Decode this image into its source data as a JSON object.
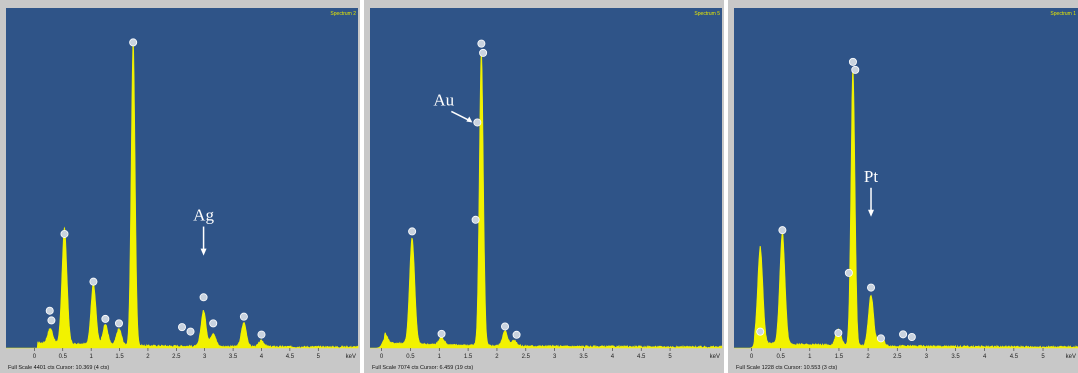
{
  "colors": {
    "plot_background": "#2f5488",
    "spectrum": "#f2f200",
    "annotation": "#ffffff",
    "frame": "#c8c8c8"
  },
  "chart_data": [
    {
      "type": "line",
      "spectrum_label": "Spectrum 2",
      "xlabel": "keV",
      "xticks": [
        "0",
        "0.5",
        "1",
        "1.5",
        "2",
        "2.5",
        "3",
        "3.5",
        "4",
        "4.5",
        "5"
      ],
      "xlim": [
        -0.5,
        5.7
      ],
      "footer_scale": "Full Scale 4401 cts",
      "footer_cursor": "Cursor: 10.369 (4 cts)",
      "ylim": [
        0,
        4401
      ],
      "peaks": [
        {
          "x": 0.28,
          "y": 200
        },
        {
          "x": 0.53,
          "y": 1550
        },
        {
          "x": 1.04,
          "y": 820
        },
        {
          "x": 1.25,
          "y": 280
        },
        {
          "x": 1.49,
          "y": 220
        },
        {
          "x": 1.74,
          "y": 4100
        },
        {
          "x": 2.98,
          "y": 480
        },
        {
          "x": 3.15,
          "y": 180
        },
        {
          "x": 3.69,
          "y": 320
        },
        {
          "x": 4.0,
          "y": 80
        }
      ],
      "markers": [
        {
          "x": 0.27,
          "y": 460
        },
        {
          "x": 0.3,
          "y": 330
        },
        {
          "x": 0.53,
          "y": 1490
        },
        {
          "x": 1.04,
          "y": 850
        },
        {
          "x": 1.25,
          "y": 350
        },
        {
          "x": 1.49,
          "y": 290
        },
        {
          "x": 1.74,
          "y": 4060
        },
        {
          "x": 2.6,
          "y": 240
        },
        {
          "x": 2.75,
          "y": 180
        },
        {
          "x": 2.98,
          "y": 640
        },
        {
          "x": 3.15,
          "y": 290
        },
        {
          "x": 3.69,
          "y": 380
        },
        {
          "x": 4.0,
          "y": 140
        }
      ],
      "annotation": {
        "label": "Ag",
        "x": 2.98,
        "y": 1200
      }
    },
    {
      "type": "line",
      "spectrum_label": "Spectrum 5",
      "xlabel": "keV",
      "xticks": [
        "0",
        "0.5",
        "1",
        "1.5",
        "2",
        "2.5",
        "3",
        "3.5",
        "4",
        "4.5",
        "5"
      ],
      "xlim": [
        -0.2,
        5.9
      ],
      "footer_scale": "Full Scale 7074 cts",
      "footer_cursor": "Cursor: 6.459 (19 cts)",
      "ylim": [
        0,
        7074
      ],
      "peaks": [
        {
          "x": 0.06,
          "y": 200
        },
        {
          "x": 0.53,
          "y": 2300
        },
        {
          "x": 1.04,
          "y": 160
        },
        {
          "x": 1.73,
          "y": 6400
        },
        {
          "x": 2.14,
          "y": 320
        },
        {
          "x": 2.3,
          "y": 120
        }
      ],
      "markers": [
        {
          "x": 0.53,
          "y": 2450
        },
        {
          "x": 1.04,
          "y": 240
        },
        {
          "x": 1.63,
          "y": 2700
        },
        {
          "x": 1.66,
          "y": 4800
        },
        {
          "x": 1.73,
          "y": 6500
        },
        {
          "x": 1.76,
          "y": 6300
        },
        {
          "x": 2.14,
          "y": 400
        },
        {
          "x": 2.34,
          "y": 220
        }
      ],
      "annotation": {
        "label": "Au",
        "x": 1.66,
        "y": 4800
      }
    },
    {
      "type": "line",
      "spectrum_label": "Spectrum 1",
      "xlabel": "keV",
      "xticks": [
        "0",
        "0.5",
        "1",
        "1.5",
        "2",
        "2.5",
        "3",
        "3.5",
        "4",
        "4.5",
        "5"
      ],
      "xlim": [
        -0.3,
        5.6
      ],
      "footer_scale": "Full Scale 1228 cts",
      "footer_cursor": "Cursor: 10.553 (3 cts)",
      "ylim": [
        0,
        1228
      ],
      "peaks": [
        {
          "x": 0.15,
          "y": 360
        },
        {
          "x": 0.53,
          "y": 420
        },
        {
          "x": 1.49,
          "y": 60
        },
        {
          "x": 1.74,
          "y": 1040
        },
        {
          "x": 2.05,
          "y": 190
        },
        {
          "x": 2.22,
          "y": 40
        }
      ],
      "markers": [
        {
          "x": 0.15,
          "y": 50
        },
        {
          "x": 0.53,
          "y": 430
        },
        {
          "x": 1.49,
          "y": 45
        },
        {
          "x": 1.67,
          "y": 270
        },
        {
          "x": 1.74,
          "y": 1060
        },
        {
          "x": 1.78,
          "y": 1030
        },
        {
          "x": 2.05,
          "y": 215
        },
        {
          "x": 2.22,
          "y": 25
        },
        {
          "x": 2.6,
          "y": 40
        },
        {
          "x": 2.75,
          "y": 30
        }
      ],
      "annotation": {
        "label": "Pt",
        "x": 2.05,
        "y": 480
      }
    }
  ]
}
